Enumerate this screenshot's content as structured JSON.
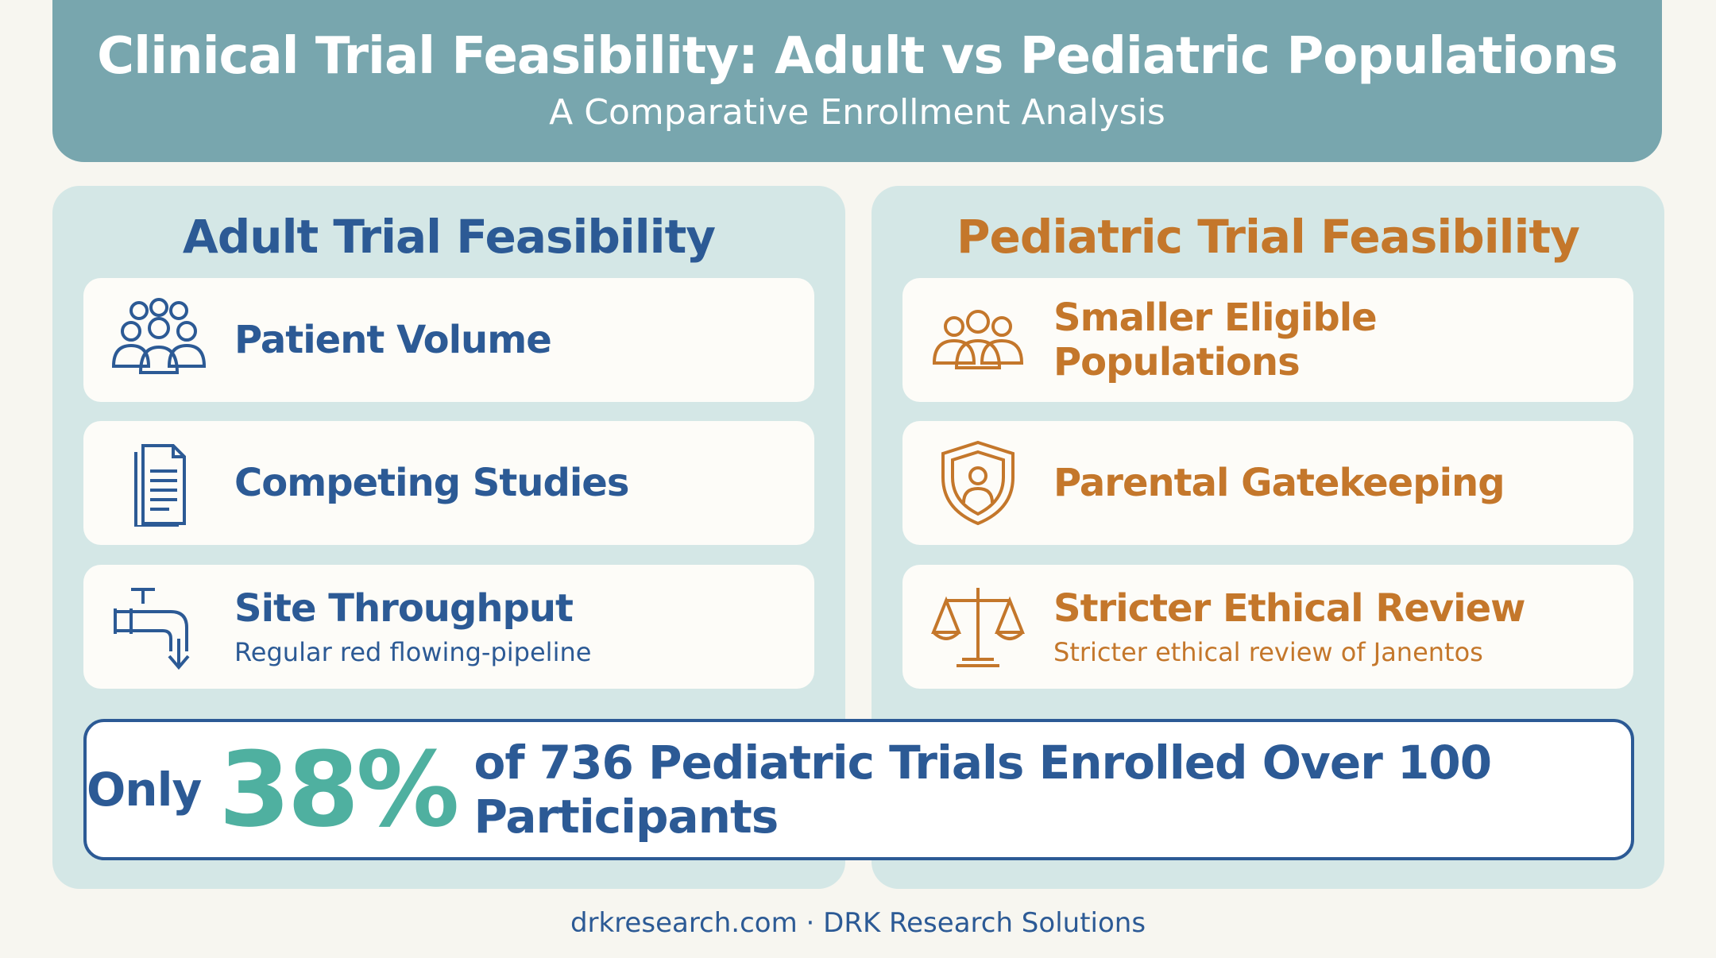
{
  "header": {
    "title": "Clinical Trial Feasibility: Adult vs Pediatric Populations",
    "subtitle": "A Comparative Enrollment Analysis"
  },
  "columns": [
    {
      "title": "Adult Trial Feasibility",
      "items": [
        {
          "title": "Patient Volume"
        },
        {
          "title": "Competing Studies"
        },
        {
          "title": "Site Throughput",
          "subtitle": "Regular red flowing-pipeline"
        }
      ]
    },
    {
      "title": "Pediatric Trial Feasibility",
      "items": [
        {
          "title": "Smaller Eligible Populations"
        },
        {
          "title": "Parental Gatekeeping"
        },
        {
          "title": "Stricter Ethical Review",
          "subtitle": "Stricter ethical review of Janentos"
        }
      ]
    }
  ],
  "callout": {
    "prefix": "Only",
    "highlight": "38%",
    "text": "of 736 Pediatric Trials Enrolled Over 100 Participants"
  },
  "footer": "drkresearch.com · DRK Research Solutions"
}
